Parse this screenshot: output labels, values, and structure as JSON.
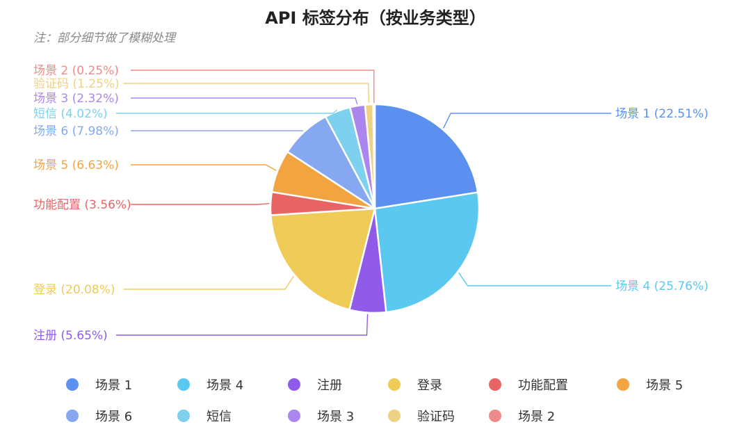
{
  "chart_data": {
    "type": "pie",
    "title": "API 标签分布（按业务类型）",
    "note": "注：部分细节做了模糊处理",
    "slices": [
      {
        "name": "场景 1",
        "label": "场景 1 (22.51%)",
        "value": 22.51,
        "color": "#5b8ff0"
      },
      {
        "name": "场景 4",
        "label": "场景 4 (25.76%)",
        "value": 25.76,
        "color": "#5bc8f0"
      },
      {
        "name": "注册",
        "label": "注册 (5.65%)",
        "value": 5.65,
        "color": "#8f5be8"
      },
      {
        "name": "登录",
        "label": "登录 (20.08%)",
        "value": 20.08,
        "color": "#efcb58"
      },
      {
        "name": "功能配置",
        "label": "功能配置 (3.56%)",
        "value": 3.56,
        "color": "#e86464"
      },
      {
        "name": "场景 5",
        "label": "场景 5 (6.63%)",
        "value": 6.63,
        "color": "#f2a441"
      },
      {
        "name": "场景 6",
        "label": "场景 6 (7.98%)",
        "value": 7.98,
        "color": "#86a8f0"
      },
      {
        "name": "短信",
        "label": "短信 (4.02%)",
        "value": 4.02,
        "color": "#7dd1ef"
      },
      {
        "name": "场景 3",
        "label": "场景 3 (2.32%)",
        "value": 2.32,
        "color": "#ac86ef"
      },
      {
        "name": "验证码",
        "label": "验证码 (1.25%)",
        "value": 1.25,
        "color": "#efd184"
      },
      {
        "name": "场景 2",
        "label": "场景 2 (0.25%)",
        "value": 0.25,
        "color": "#ee8a8a"
      }
    ],
    "legend_placement": "bottom"
  }
}
